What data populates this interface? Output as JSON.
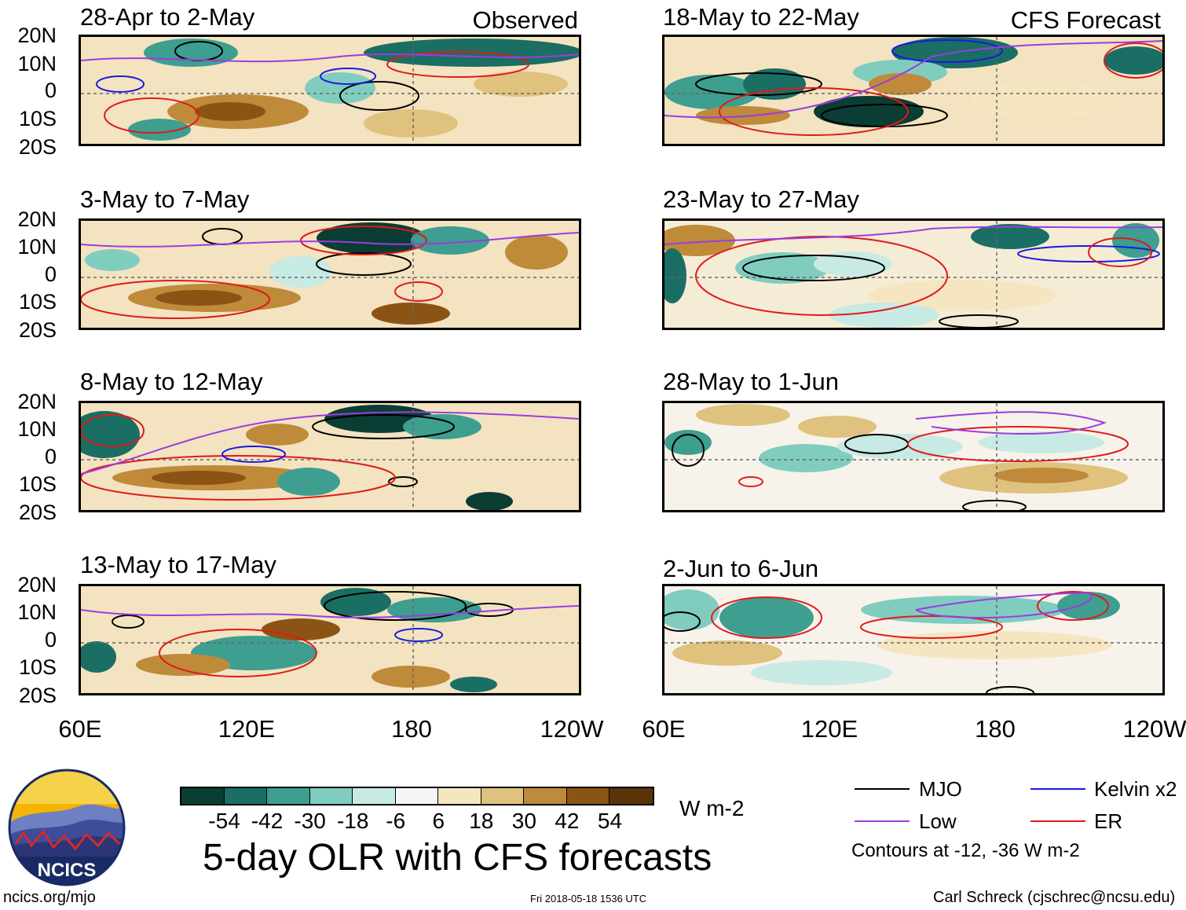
{
  "figure": {
    "title": "5-day OLR with CFS forecasts",
    "url": "ncics.org/mjo",
    "timestamp": "Fri 2018-05-18 1536 UTC",
    "author": "Carl Schreck (cjschrec@ncsu.edu)",
    "logo_text": "NCICS"
  },
  "columns": [
    {
      "label": "Observed",
      "panels": [
        "28-Apr to 2-May",
        "3-May to 7-May",
        "8-May to 12-May",
        "13-May to 17-May"
      ]
    },
    {
      "label": "CFS Forecast",
      "panels": [
        "18-May to 22-May",
        "23-May to 27-May",
        "28-May to 1-Jun",
        "2-Jun to 6-Jun"
      ]
    }
  ],
  "lat_labels": [
    "20N",
    "10N",
    "0",
    "10S",
    "20S"
  ],
  "lon_labels": [
    "60E",
    "120E",
    "180",
    "120W"
  ],
  "colorbar": {
    "colors": [
      "#0a3d33",
      "#1b6e63",
      "#3e9e90",
      "#80cdc0",
      "#c7eae4",
      "#f5f5f5",
      "#f5e6c1",
      "#dfc27e",
      "#bf8a3a",
      "#8c5414",
      "#5a3409"
    ],
    "ticks": [
      "-54",
      "-42",
      "-30",
      "-18",
      "-6",
      "6",
      "18",
      "30",
      "42",
      "54"
    ],
    "units": "W m-2"
  },
  "legend": {
    "items": [
      {
        "name": "MJO",
        "color": "#000000"
      },
      {
        "name": "Kelvin x2",
        "color": "#1a1adf"
      },
      {
        "name": "Low",
        "color": "#9a3de0"
      },
      {
        "name": "ER",
        "color": "#e01a1a"
      }
    ],
    "note": "Contours at -12, -36 W m-2"
  }
}
